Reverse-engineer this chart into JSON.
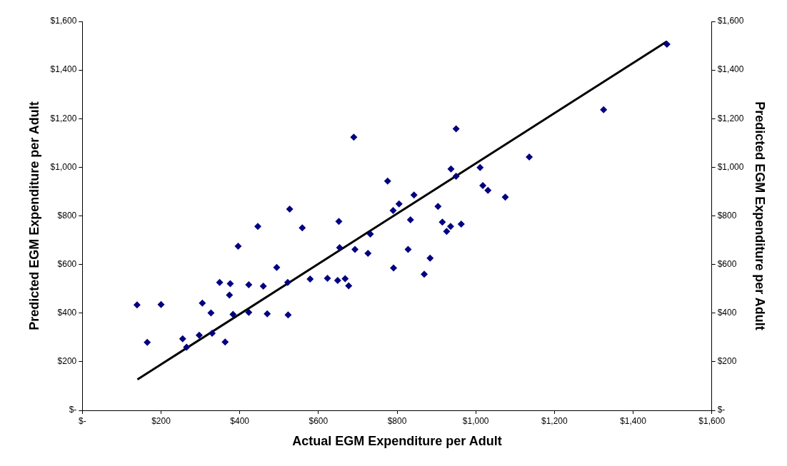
{
  "chart_data": {
    "type": "scatter",
    "xlabel": "Actual EGM Expenditure per Adult",
    "ylabel": "Predicted EGM Expenditure per Adult",
    "y2label": "Predicted EGM Expenditure per Adult",
    "xlim": [
      0,
      1600
    ],
    "ylim": [
      0,
      1600
    ],
    "y2lim": [
      0,
      1600
    ],
    "xticks": [
      {
        "value": 0,
        "label": "$-"
      },
      {
        "value": 200,
        "label": "$200"
      },
      {
        "value": 400,
        "label": "$400"
      },
      {
        "value": 600,
        "label": "$600"
      },
      {
        "value": 800,
        "label": "$800"
      },
      {
        "value": 1000,
        "label": "$1,000"
      },
      {
        "value": 1200,
        "label": "$1,200"
      },
      {
        "value": 1400,
        "label": "$1,400"
      },
      {
        "value": 1600,
        "label": "$1,600"
      }
    ],
    "yticks": [
      {
        "value": 0,
        "label": "$-"
      },
      {
        "value": 200,
        "label": "$200"
      },
      {
        "value": 400,
        "label": "$400"
      },
      {
        "value": 600,
        "label": "$600"
      },
      {
        "value": 800,
        "label": "$800"
      },
      {
        "value": 1000,
        "label": "$1,000"
      },
      {
        "value": 1200,
        "label": "$1,200"
      },
      {
        "value": 1400,
        "label": "$1,400"
      },
      {
        "value": 1600,
        "label": "$1,600"
      }
    ],
    "y2ticks": [
      {
        "value": 0,
        "label": "$-"
      },
      {
        "value": 200,
        "label": "$200"
      },
      {
        "value": 400,
        "label": "$400"
      },
      {
        "value": 600,
        "label": "$600"
      },
      {
        "value": 800,
        "label": "$800"
      },
      {
        "value": 1000,
        "label": "$1,000"
      },
      {
        "value": 1200,
        "label": "$1,200"
      },
      {
        "value": 1400,
        "label": "$1,400"
      },
      {
        "value": 1600,
        "label": "$1,600"
      }
    ],
    "grid": false,
    "legend": false,
    "marker": "diamond",
    "series": [
      {
        "color": "#000080",
        "x": [
          139,
          165,
          200,
          255,
          265,
          297,
          305,
          327,
          330,
          349,
          363,
          374,
          376,
          383,
          396,
          423,
          423,
          446,
          460,
          470,
          494,
          522,
          523,
          527,
          559,
          579,
          623,
          649,
          668,
          677,
          652,
          654,
          690,
          693,
          726,
          732,
          776,
          790,
          791,
          805,
          828,
          834,
          843,
          869,
          884,
          904,
          915,
          926,
          936,
          963,
          937,
          950,
          950,
          1011,
          1018,
          1031,
          1075,
          1136,
          1325,
          1486
        ],
        "values": [
          434,
          280,
          435,
          294,
          260,
          309,
          441,
          401,
          317,
          526,
          281,
          474,
          521,
          395,
          675,
          517,
          403,
          757,
          511,
          397,
          588,
          526,
          393,
          828,
          751,
          540,
          543,
          534,
          542,
          512,
          777,
          669,
          1124,
          662,
          646,
          725,
          943,
          822,
          586,
          849,
          662,
          784,
          886,
          560,
          626,
          839,
          774,
          736,
          757,
          766,
          993,
          1158,
          963,
          999,
          925,
          905,
          877,
          1042,
          1237,
          1506
        ]
      },
      {
        "type": "line",
        "color": "#000000",
        "marker": "none",
        "line_style": "solid",
        "x": [
          140,
          1486
        ],
        "values": [
          127,
          1518
        ]
      }
    ]
  }
}
